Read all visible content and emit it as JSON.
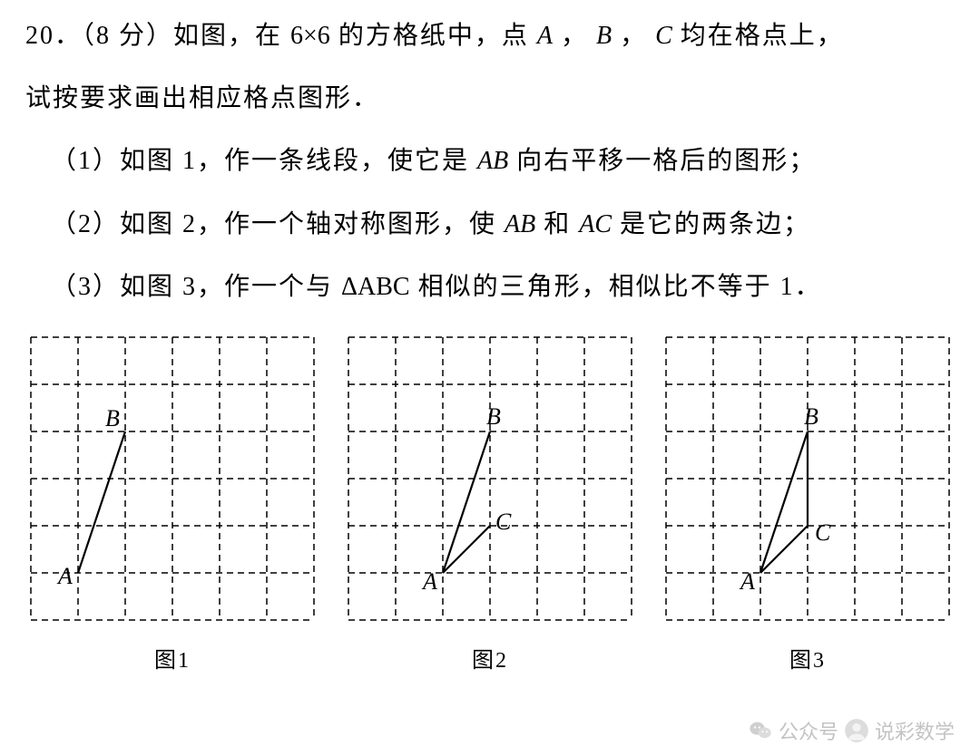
{
  "text": {
    "l1a": "20．（8 分）如图，在 ",
    "l1_math": "6×6",
    "l1b": " 的方格纸中，点 ",
    "l1c": " ， ",
    "l1d": " ， ",
    "l1e": " 均在格点上，",
    "l2": "试按要求画出相应格点图形．",
    "p1a": "（1）如图 1，作一条线段，使它是 ",
    "p1b": " 向右平移一格后的图形；",
    "p2a": "（2）如图 2，作一个轴对称图形，使 ",
    "p2b": " 和 ",
    "p2c": " 是它的两条边；",
    "p3a": "（3）如图 3，作一个与 ",
    "p3b": " 相似的三角形，相似比不等于 1．",
    "varA": "A",
    "varB": "B",
    "varC": "C",
    "varAB": "AB",
    "varAC": "AC",
    "triABC": "ΔABC"
  },
  "captions": {
    "c1": "图1",
    "c2": "图2",
    "c3": "图3"
  },
  "watermark": {
    "label1": "公众号",
    "label2": "说彩数学"
  },
  "figures": {
    "grid": {
      "cols": 6,
      "rows": 6,
      "cell": 52,
      "dash_color": "#000000",
      "dash_pattern": "7 5",
      "line_color": "#000000",
      "line_width": 2.2,
      "label_fontsize": 26
    },
    "fig1": {
      "points": {
        "A": [
          1,
          5
        ],
        "B": [
          2,
          2
        ]
      },
      "segments": [
        [
          "A",
          "B"
        ]
      ],
      "label_offsets": {
        "A": [
          -22,
          12
        ],
        "B": [
          -22,
          -6
        ]
      }
    },
    "fig2": {
      "points": {
        "A": [
          2,
          5
        ],
        "B": [
          3,
          2
        ],
        "C": [
          3,
          4
        ]
      },
      "segments": [
        [
          "A",
          "B"
        ],
        [
          "A",
          "C"
        ]
      ],
      "label_offsets": {
        "A": [
          -22,
          18
        ],
        "B": [
          -4,
          -8
        ],
        "C": [
          6,
          4
        ]
      }
    },
    "fig3": {
      "points": {
        "A": [
          2,
          5
        ],
        "B": [
          3,
          2
        ],
        "C": [
          3,
          4
        ]
      },
      "segments": [
        [
          "A",
          "B"
        ],
        [
          "A",
          "C"
        ],
        [
          "B",
          "C"
        ]
      ],
      "label_offsets": {
        "A": [
          -22,
          18
        ],
        "B": [
          -4,
          -8
        ],
        "C": [
          8,
          16
        ]
      }
    }
  },
  "colors": {
    "background": "#ffffff",
    "text": "#000000",
    "watermark": "#b9b9b9"
  }
}
